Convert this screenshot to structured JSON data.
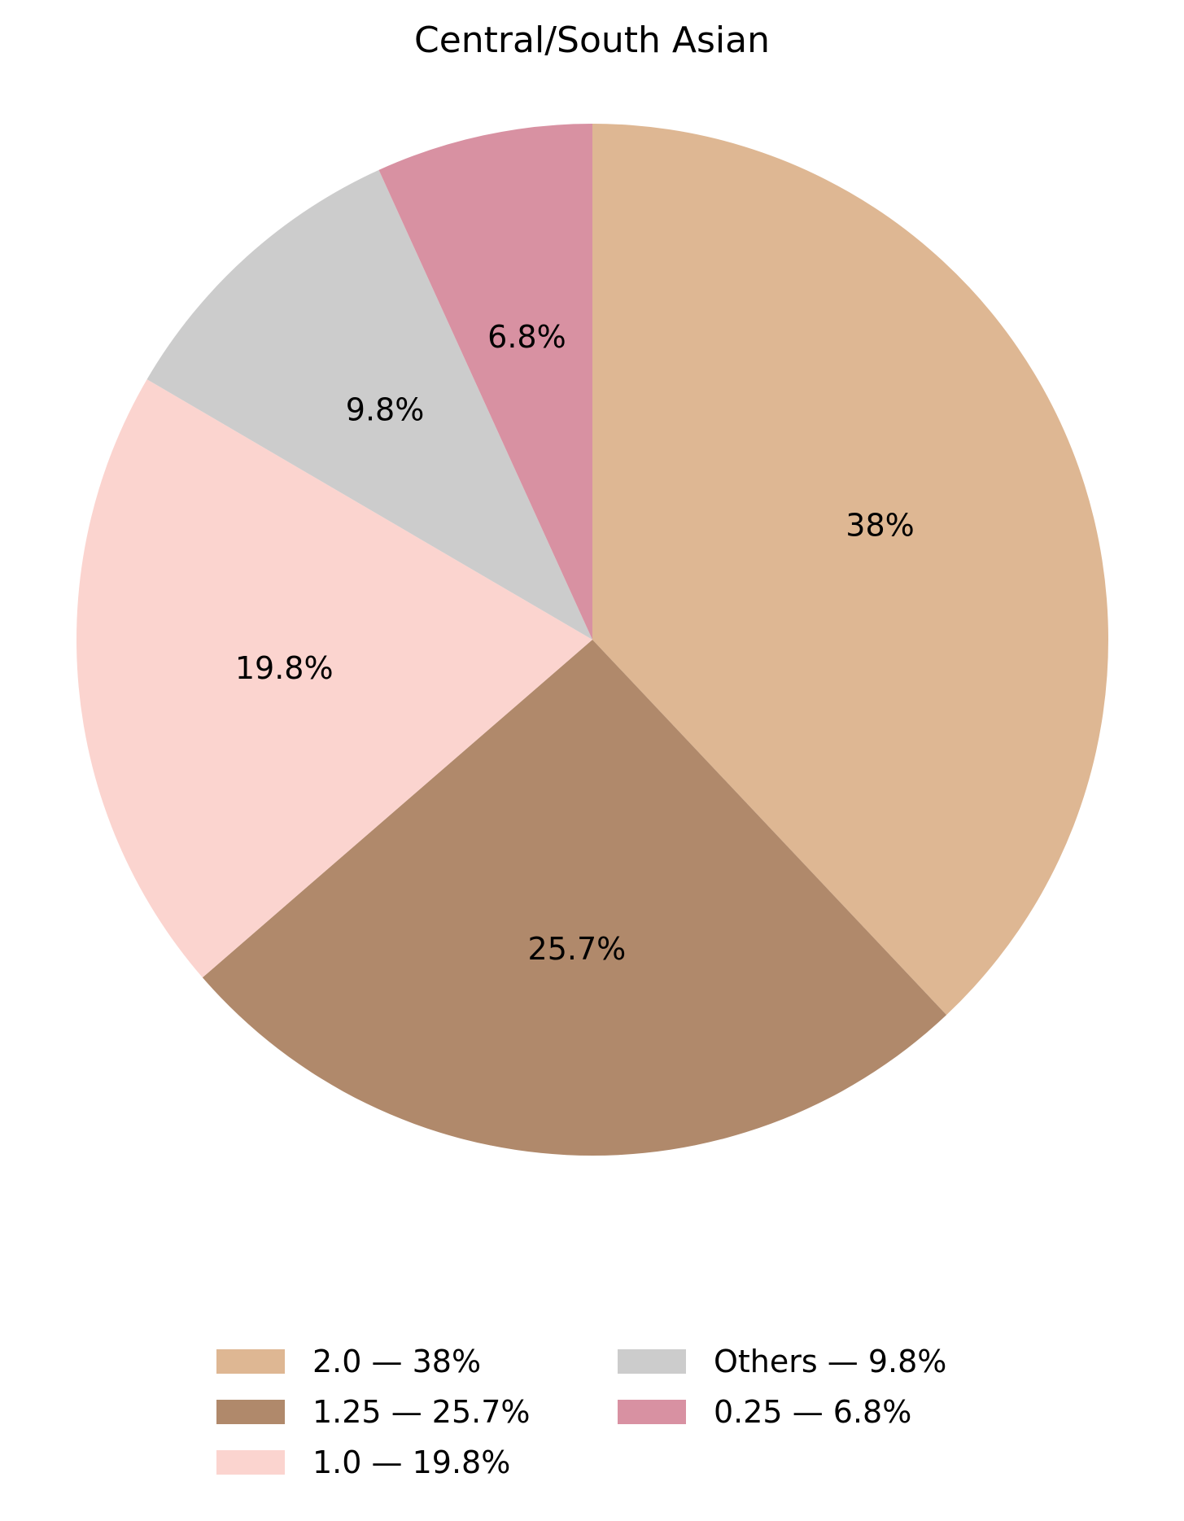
{
  "chart_data": {
    "type": "pie",
    "title": "Central/South Asian",
    "start_angle": "top, clockwise",
    "legend_placement": "bottom",
    "slices": [
      {
        "label": "2.0",
        "value": 38.0,
        "pct_label": "38%",
        "legend": "2.0 — 38%",
        "color": "#deb793"
      },
      {
        "label": "1.25",
        "value": 25.7,
        "pct_label": "25.7%",
        "legend": "1.25 — 25.7%",
        "color": "#b0896b"
      },
      {
        "label": "1.0",
        "value": 19.8,
        "pct_label": "19.8%",
        "legend": "1.0 — 19.8%",
        "color": "#fbd4cf"
      },
      {
        "label": "Others",
        "value": 9.8,
        "pct_label": "9.8%",
        "legend": "Others — 9.8%",
        "color": "#cccccc"
      },
      {
        "label": "0.25",
        "value": 6.8,
        "pct_label": "6.8%",
        "legend": "0.25 — 6.8%",
        "color": "#d891a2"
      }
    ]
  }
}
